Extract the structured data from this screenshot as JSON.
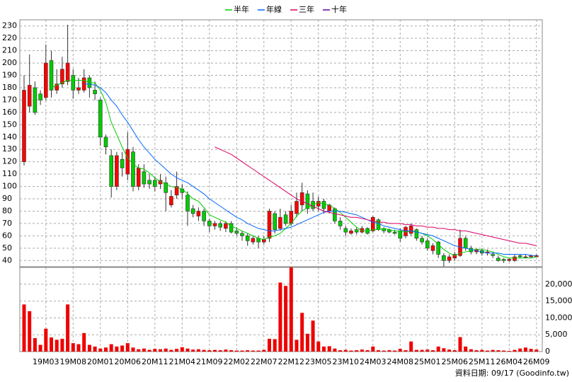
{
  "chart_data": {
    "type": "candlestick",
    "categories": [
      null,
      null,
      null,
      null,
      "19M03",
      null,
      null,
      null,
      null,
      "19M08",
      null,
      null,
      null,
      null,
      "20M01",
      null,
      null,
      null,
      null,
      "20M06",
      null,
      null,
      null,
      null,
      "20M11",
      null,
      null,
      null,
      null,
      "21M04",
      null,
      null,
      null,
      null,
      "21M09",
      null,
      null,
      null,
      null,
      "22M02",
      null,
      null,
      null,
      null,
      "22M07",
      null,
      null,
      null,
      null,
      "22M12",
      null,
      null,
      null,
      null,
      "23M05",
      null,
      null,
      null,
      null,
      "23M10",
      null,
      null,
      null,
      null,
      "24M03",
      null,
      null,
      null,
      null,
      "24M08",
      null,
      null,
      null,
      null,
      "25M01",
      null,
      null,
      null,
      null,
      "25M06",
      null,
      null,
      null,
      null,
      "25M11",
      null,
      null,
      null,
      null,
      "26M04",
      null,
      null,
      null,
      null,
      "26M09"
    ],
    "open": [
      120,
      165,
      180,
      175,
      172,
      202,
      178,
      183,
      185,
      190,
      178,
      178,
      188,
      178,
      170,
      140,
      125,
      100,
      122,
      110,
      128,
      100,
      112,
      105,
      105,
      102,
      103,
      85,
      93,
      98,
      93,
      82,
      76,
      80,
      72,
      68,
      70,
      66,
      70,
      64,
      62,
      60,
      55,
      58,
      55,
      58,
      78,
      66,
      77,
      70,
      78,
      85,
      94,
      88,
      84,
      88,
      80,
      82,
      72,
      66,
      62,
      65,
      63,
      66,
      64,
      73,
      66,
      65,
      63,
      64,
      60,
      62,
      65,
      58,
      56,
      48,
      55,
      44,
      40,
      42,
      44,
      58,
      50,
      47,
      48,
      46,
      45,
      42,
      41,
      40,
      40,
      44,
      43,
      43,
      43
    ],
    "high": [
      190,
      207,
      185,
      178,
      215,
      210,
      195,
      205,
      231,
      195,
      188,
      195,
      190,
      185,
      172,
      142,
      130,
      128,
      128,
      144,
      132,
      118,
      118,
      110,
      108,
      110,
      108,
      97,
      112,
      102,
      96,
      85,
      83,
      82,
      74,
      72,
      72,
      72,
      72,
      67,
      64,
      62,
      60,
      60,
      60,
      82,
      80,
      82,
      80,
      85,
      95,
      103,
      97,
      95,
      92,
      90,
      86,
      83,
      75,
      68,
      66,
      67,
      68,
      67,
      76,
      74,
      67,
      66,
      65,
      66,
      68,
      70,
      66,
      60,
      58,
      54,
      56,
      46,
      45,
      47,
      65,
      60,
      52,
      50,
      50,
      49,
      47,
      44,
      42,
      42,
      45,
      45,
      45,
      45,
      45
    ],
    "low": [
      117,
      160,
      158,
      166,
      170,
      172,
      175,
      180,
      182,
      171,
      175,
      176,
      172,
      170,
      133,
      126,
      91,
      97,
      108,
      105,
      96,
      97,
      99,
      98,
      96,
      98,
      80,
      83,
      90,
      90,
      68,
      75,
      72,
      68,
      63,
      65,
      64,
      63,
      62,
      60,
      56,
      52,
      53,
      50,
      53,
      55,
      62,
      64,
      68,
      68,
      75,
      80,
      78,
      80,
      80,
      78,
      78,
      70,
      65,
      60,
      61,
      61,
      62,
      61,
      63,
      64,
      62,
      62,
      61,
      55,
      58,
      60,
      56,
      53,
      48,
      45,
      42,
      35,
      38,
      40,
      43,
      48,
      45,
      45,
      44,
      44,
      42,
      39,
      38,
      39,
      39,
      42,
      42,
      42,
      43
    ],
    "close": [
      178,
      182,
      160,
      170,
      200,
      178,
      183,
      195,
      200,
      178,
      180,
      188,
      180,
      175,
      140,
      132,
      100,
      125,
      115,
      130,
      100,
      115,
      102,
      102,
      100,
      105,
      95,
      92,
      100,
      95,
      80,
      78,
      80,
      72,
      68,
      70,
      67,
      70,
      63,
      62,
      60,
      56,
      58,
      55,
      57,
      80,
      65,
      75,
      70,
      80,
      88,
      95,
      82,
      82,
      88,
      82,
      85,
      72,
      68,
      63,
      64,
      63,
      66,
      62,
      75,
      65,
      64,
      63,
      62,
      58,
      67,
      68,
      58,
      55,
      50,
      52,
      45,
      40,
      43,
      45,
      58,
      50,
      47,
      49,
      46,
      47,
      44,
      40,
      40,
      41,
      43,
      43,
      43,
      44,
      44
    ],
    "up_color": "#ff0000",
    "down_color": "#00cc00",
    "ylim": [
      35,
      235
    ],
    "yticks": [
      40,
      50,
      60,
      70,
      80,
      90,
      100,
      110,
      120,
      130,
      140,
      150,
      160,
      170,
      180,
      190,
      200,
      210,
      220,
      230
    ],
    "grid": true,
    "series": [
      {
        "name": "半年",
        "color": "#00cc00",
        "values": [
          null,
          null,
          null,
          null,
          null,
          180,
          182,
          184,
          186,
          186,
          186,
          186,
          184,
          184,
          178,
          168,
          152,
          142,
          132,
          123,
          118,
          115,
          114,
          111,
          107,
          104,
          102,
          100,
          99,
          98,
          94,
          90,
          88,
          83,
          77,
          75,
          73,
          71,
          68,
          66,
          64,
          62,
          60,
          58,
          57,
          59,
          60,
          62,
          66,
          70,
          76,
          80,
          83,
          85,
          87,
          86,
          85,
          82,
          79,
          75,
          71,
          67,
          64,
          64,
          65,
          65,
          66,
          65,
          64,
          64,
          63,
          64,
          63,
          62,
          60,
          57,
          53,
          49,
          46,
          44,
          46,
          47,
          48,
          49,
          49,
          48,
          47,
          45,
          43,
          42,
          42,
          42,
          42,
          42,
          43
        ]
      },
      {
        "name": "年線",
        "color": "#0066ff",
        "values": [
          null,
          null,
          null,
          null,
          null,
          null,
          null,
          null,
          null,
          null,
          null,
          183,
          183,
          182,
          180,
          176,
          170,
          165,
          158,
          152,
          145,
          138,
          132,
          127,
          122,
          118,
          114,
          110,
          107,
          105,
          103,
          100,
          97,
          94,
          90,
          87,
          84,
          81,
          78,
          75,
          73,
          70,
          68,
          66,
          65,
          64,
          64,
          65,
          66,
          67,
          69,
          71,
          73,
          75,
          77,
          79,
          80,
          80,
          80,
          79,
          78,
          77,
          75,
          73,
          71,
          70,
          68,
          67,
          66,
          65,
          64,
          64,
          63,
          62,
          61,
          60,
          58,
          56,
          54,
          52,
          51,
          50,
          49,
          48,
          47,
          46,
          46,
          46,
          45,
          45,
          45,
          45,
          45,
          44,
          44
        ]
      },
      {
        "name": "三年",
        "color": "#dd0066",
        "values": [
          null,
          null,
          null,
          null,
          null,
          null,
          null,
          null,
          null,
          null,
          null,
          null,
          null,
          null,
          null,
          null,
          null,
          null,
          null,
          null,
          null,
          null,
          null,
          null,
          null,
          null,
          null,
          null,
          null,
          null,
          null,
          null,
          null,
          null,
          null,
          132,
          130,
          128,
          126,
          123,
          120,
          117,
          114,
          111,
          108,
          105,
          102,
          99,
          96,
          93,
          90,
          88,
          86,
          84,
          82,
          80,
          79,
          78,
          77,
          76,
          75,
          75,
          74,
          73,
          72,
          71,
          71,
          70,
          70,
          70,
          69,
          69,
          68,
          68,
          67,
          67,
          66,
          66,
          65,
          65,
          64,
          64,
          63,
          62,
          61,
          60,
          59,
          58,
          57,
          56,
          55,
          54,
          54,
          53,
          52
        ]
      },
      {
        "name": "十年",
        "color": "#660099",
        "values": [
          null,
          null,
          null,
          null,
          null,
          null,
          null,
          null,
          null,
          null,
          null,
          null,
          null,
          null,
          null,
          null,
          null,
          null,
          null,
          null,
          null,
          null,
          null,
          null,
          null,
          null,
          null,
          null,
          null,
          null,
          null,
          null,
          null,
          null,
          null,
          null,
          null,
          null,
          null,
          null,
          null,
          null,
          null,
          null,
          null,
          null,
          null,
          null,
          null,
          null,
          null,
          null,
          null,
          null,
          null,
          null,
          null,
          null,
          null,
          null,
          null,
          null,
          null,
          null,
          null,
          null,
          null,
          null,
          null,
          null,
          null,
          null,
          null,
          null,
          null,
          null,
          null,
          null,
          null,
          null,
          null,
          null,
          null,
          null,
          null,
          null,
          null,
          null,
          null,
          null,
          null,
          null,
          null,
          null,
          null
        ]
      }
    ],
    "volume": {
      "color": "#ee0000",
      "ylim": [
        0,
        25000
      ],
      "yticks": [
        0,
        {
          "value": 5000,
          "label": "5,000"
        },
        {
          "value": 10000,
          "label": "10,000"
        },
        {
          "value": 15000,
          "label": "15,000"
        },
        {
          "value": 20000,
          "label": "20,000"
        }
      ],
      "values": [
        14000,
        12000,
        4000,
        2000,
        6800,
        4200,
        3500,
        3800,
        14000,
        2500,
        2200,
        5500,
        2000,
        1500,
        900,
        1200,
        2200,
        1500,
        1800,
        2500,
        1200,
        700,
        900,
        500,
        800,
        700,
        900,
        500,
        800,
        1300,
        900,
        600,
        700,
        500,
        400,
        500,
        400,
        600,
        400,
        300,
        300,
        400,
        300,
        300,
        500,
        3800,
        3700,
        20500,
        19500,
        25000,
        3500,
        11500,
        5300,
        9200,
        3000,
        1500,
        1600,
        900,
        400,
        500,
        300,
        400,
        600,
        400,
        1500,
        400,
        300,
        400,
        300,
        800,
        400,
        3000,
        500,
        500,
        600,
        400,
        1500,
        1000,
        600,
        400,
        4300,
        1500,
        700,
        400,
        500,
        300,
        500,
        400,
        300,
        200,
        500,
        900,
        1200,
        800,
        600
      ]
    },
    "footnote": "資料日期: 09/17  (Goodinfo.tw)"
  }
}
